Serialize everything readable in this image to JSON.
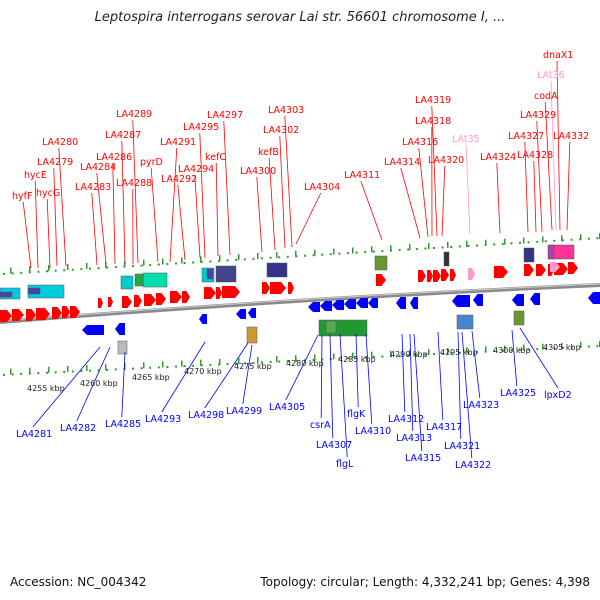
{
  "title": "Leptospira interrogans serovar Lai str. 56601 chromosome I, ...",
  "footer": {
    "accession": "Accession: NC_004342",
    "topology": "Topology: circular; Length: 4,332,241 bp; Genes: 4,398"
  },
  "colors": {
    "forward": "#ff0000",
    "reverse": "#0000ff",
    "rna": "#ff99cc",
    "backbone": "#888888",
    "ticks": "#339933"
  },
  "kbp_labels": [
    "4255 kbp",
    "4260 kbp",
    "4265 kbp",
    "4270 kbp",
    "4275 kbp",
    "4280 kbp",
    "4285 kbp",
    "4290 kbp",
    "4295 kbp",
    "4300 kbp",
    "4305 kbp"
  ],
  "top_labels": [
    {
      "text": "hyfF",
      "color": "red"
    },
    {
      "text": "hycE",
      "color": "red"
    },
    {
      "text": "hycG",
      "color": "red"
    },
    {
      "text": "LA4279",
      "color": "red"
    },
    {
      "text": "LA4280",
      "color": "red"
    },
    {
      "text": "LA4283",
      "color": "red"
    },
    {
      "text": "LA4284",
      "color": "red"
    },
    {
      "text": "LA4286",
      "color": "red"
    },
    {
      "text": "LA4287",
      "color": "red"
    },
    {
      "text": "LA4288",
      "color": "red"
    },
    {
      "text": "LA4289",
      "color": "red"
    },
    {
      "text": "pyrD",
      "color": "red"
    },
    {
      "text": "LA4291",
      "color": "red"
    },
    {
      "text": "LA4292",
      "color": "red"
    },
    {
      "text": "LA4294",
      "color": "red"
    },
    {
      "text": "LA4295",
      "color": "red"
    },
    {
      "text": "kefC",
      "color": "red"
    },
    {
      "text": "LA4297",
      "color": "red"
    },
    {
      "text": "LA4300",
      "color": "red"
    },
    {
      "text": "kefB",
      "color": "red"
    },
    {
      "text": "LA4302",
      "color": "red"
    },
    {
      "text": "LA4303",
      "color": "red"
    },
    {
      "text": "LA4304",
      "color": "red"
    },
    {
      "text": "LA4311",
      "color": "red"
    },
    {
      "text": "LA4314",
      "color": "red"
    },
    {
      "text": "LA4316",
      "color": "red"
    },
    {
      "text": "LA4318",
      "color": "red"
    },
    {
      "text": "LA4319",
      "color": "red"
    },
    {
      "text": "LA4320",
      "color": "red"
    },
    {
      "text": "LAt35",
      "color": "pink"
    },
    {
      "text": "LA4324",
      "color": "red"
    },
    {
      "text": "LA4327",
      "color": "red"
    },
    {
      "text": "LA4328",
      "color": "red"
    },
    {
      "text": "LA4329",
      "color": "red"
    },
    {
      "text": "codA",
      "color": "red"
    },
    {
      "text": "LAt36",
      "color": "pink"
    },
    {
      "text": "dnaX1",
      "color": "red"
    },
    {
      "text": "LA4332",
      "color": "red"
    }
  ],
  "bottom_labels": [
    {
      "text": "LA4281"
    },
    {
      "text": "LA4282"
    },
    {
      "text": "LA4285"
    },
    {
      "text": "LA4293"
    },
    {
      "text": "LA4298"
    },
    {
      "text": "LA4299"
    },
    {
      "text": "LA4305"
    },
    {
      "text": "csrA"
    },
    {
      "text": "LA4307"
    },
    {
      "text": "flgL"
    },
    {
      "text": "flgK"
    },
    {
      "text": "LA4310"
    },
    {
      "text": "LA4312"
    },
    {
      "text": "LA4313"
    },
    {
      "text": "LA4315"
    },
    {
      "text": "LA4317"
    },
    {
      "text": "LA4321"
    },
    {
      "text": "LA4322"
    },
    {
      "text": "LA4323"
    },
    {
      "text": "LA4325"
    },
    {
      "text": "lpxD2"
    }
  ]
}
